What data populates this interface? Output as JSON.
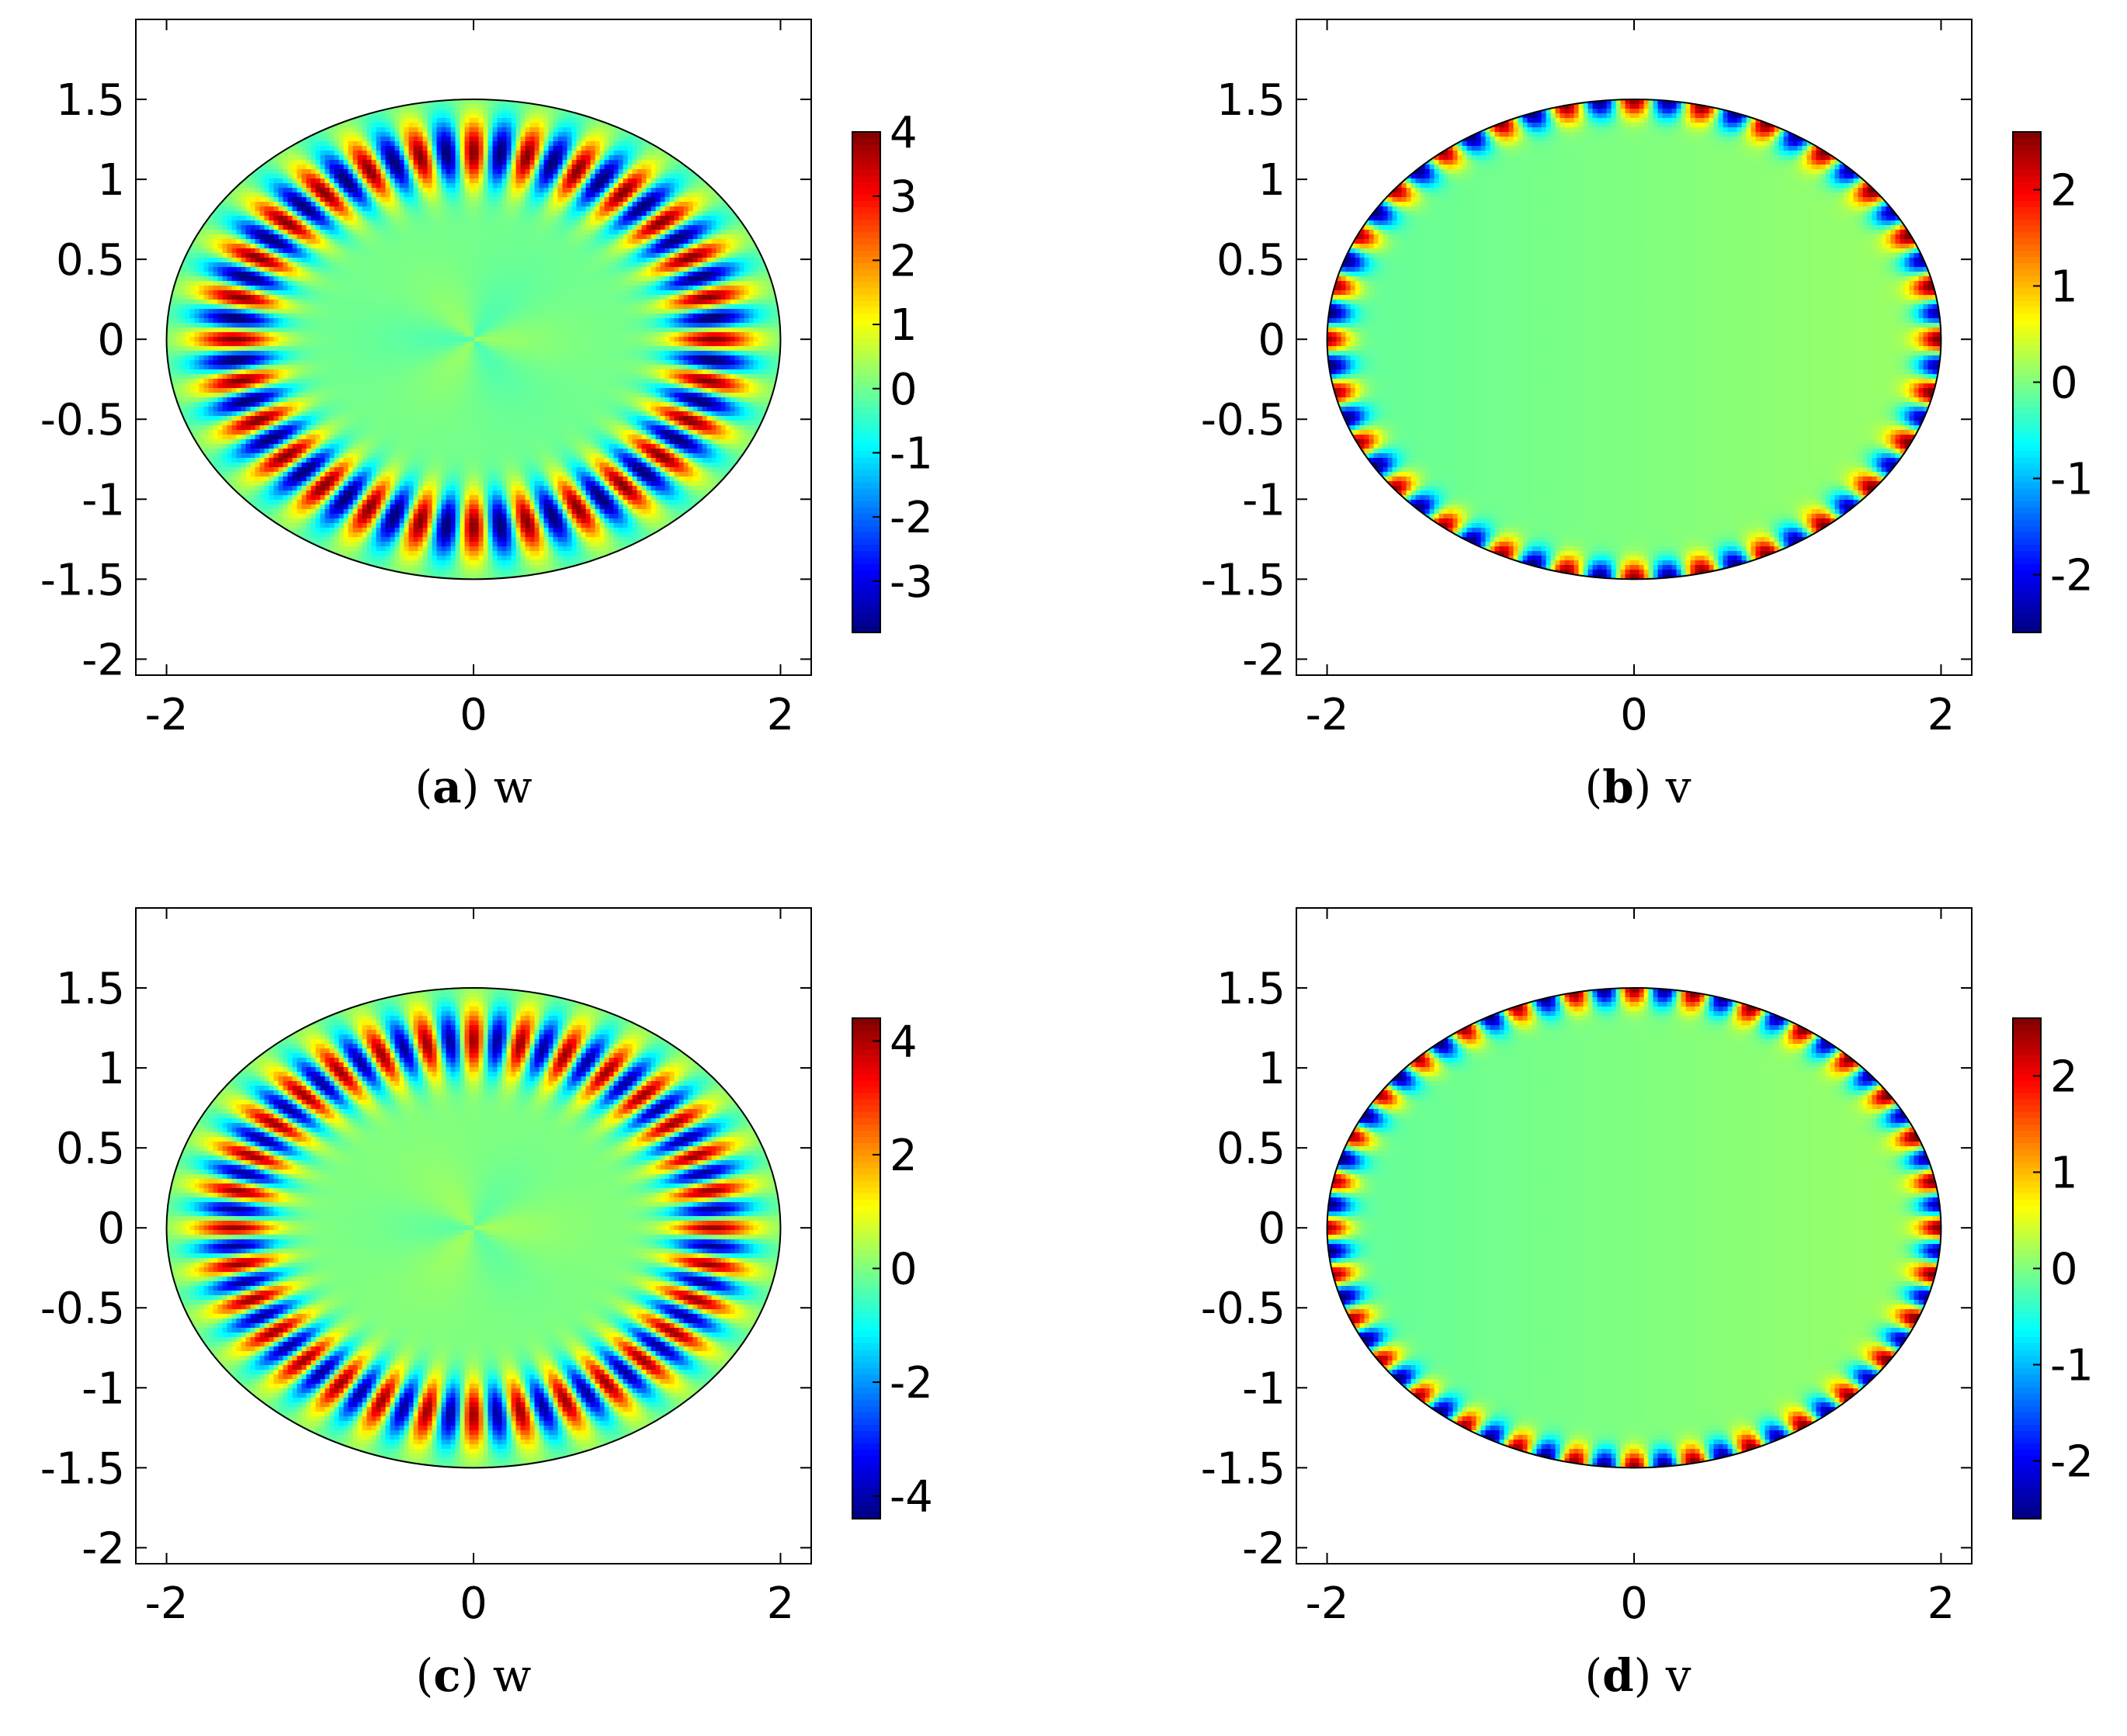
{
  "chart_data": [
    {
      "type": "heatmap",
      "panel": "a",
      "caption_letter": "a",
      "caption_var": "w",
      "title": "",
      "xlabel": "",
      "ylabel": "",
      "xlim": [
        -2.2,
        2.2
      ],
      "ylim": [
        -2.1,
        2.0
      ],
      "xticks": [
        -2,
        0,
        2
      ],
      "xtick_labels": [
        "-2",
        "0",
        "2"
      ],
      "yticks": [
        1.5,
        1,
        0.5,
        0,
        -0.5,
        -1,
        -1.5,
        -2
      ],
      "ytick_labels": [
        "1.5",
        "1",
        "0.5",
        "0",
        "-0.5",
        "-1",
        "-1.5",
        "-2"
      ],
      "domain": {
        "shape": "ellipse",
        "semi_axis_x": 2,
        "semi_axis_y": 1.5
      },
      "field": {
        "pattern": "interior",
        "lobes": 28,
        "amplitude": 4
      },
      "colorbar": {
        "range": [
          -3.8,
          4.0
        ],
        "ticks": [
          4,
          3,
          2,
          1,
          0,
          -1,
          -2,
          -3
        ],
        "tick_labels": [
          "4",
          "3",
          "2",
          "1",
          "0",
          "-1",
          "-2",
          "-3"
        ]
      },
      "grid": false
    },
    {
      "type": "heatmap",
      "panel": "b",
      "caption_letter": "b",
      "caption_var": "v",
      "title": "",
      "xlabel": "",
      "ylabel": "",
      "xlim": [
        -2.2,
        2.2
      ],
      "ylim": [
        -2.1,
        2.0
      ],
      "xticks": [
        -2,
        0,
        2
      ],
      "xtick_labels": [
        "-2",
        "0",
        "2"
      ],
      "yticks": [
        1.5,
        1,
        0.5,
        0,
        -0.5,
        -1,
        -1.5,
        -2
      ],
      "ytick_labels": [
        "1.5",
        "1",
        "0.5",
        "0",
        "-0.5",
        "-1",
        "-1.5",
        "-2"
      ],
      "domain": {
        "shape": "ellipse",
        "semi_axis_x": 2,
        "semi_axis_y": 1.5
      },
      "field": {
        "pattern": "boundary",
        "lobes": 28,
        "amplitude": 2.6
      },
      "colorbar": {
        "range": [
          -2.6,
          2.6
        ],
        "ticks": [
          2,
          1,
          0,
          -1,
          -2
        ],
        "tick_labels": [
          "2",
          "1",
          "0",
          "-1",
          "-2"
        ]
      },
      "grid": false
    },
    {
      "type": "heatmap",
      "panel": "c",
      "caption_letter": "c",
      "caption_var": "w",
      "title": "",
      "xlabel": "",
      "ylabel": "",
      "xlim": [
        -2.2,
        2.2
      ],
      "ylim": [
        -2.1,
        2.0
      ],
      "xticks": [
        -2,
        0,
        2
      ],
      "xtick_labels": [
        "-2",
        "0",
        "2"
      ],
      "yticks": [
        1.5,
        1,
        0.5,
        0,
        -0.5,
        -1,
        -1.5,
        -2
      ],
      "ytick_labels": [
        "1.5",
        "1",
        "0.5",
        "0",
        "-0.5",
        "-1",
        "-1.5",
        "-2"
      ],
      "domain": {
        "shape": "ellipse",
        "semi_axis_x": 2,
        "semi_axis_y": 1.5
      },
      "field": {
        "pattern": "interior",
        "lobes": 32,
        "amplitude": 4.2
      },
      "colorbar": {
        "range": [
          -4.4,
          4.4
        ],
        "ticks": [
          4,
          2,
          0,
          -2,
          -4
        ],
        "tick_labels": [
          "4",
          "2",
          "0",
          "-2",
          "-4"
        ]
      },
      "grid": false
    },
    {
      "type": "heatmap",
      "panel": "d",
      "caption_letter": "d",
      "caption_var": "v",
      "title": "",
      "xlabel": "",
      "ylabel": "",
      "xlim": [
        -2.2,
        2.2
      ],
      "ylim": [
        -2.1,
        2.0
      ],
      "xticks": [
        -2,
        0,
        2
      ],
      "xtick_labels": [
        "-2",
        "0",
        "2"
      ],
      "yticks": [
        1.5,
        1,
        0.5,
        0,
        -0.5,
        -1,
        -1.5,
        -2
      ],
      "ytick_labels": [
        "1.5",
        "1",
        "0.5",
        "0",
        "-0.5",
        "-1",
        "-1.5",
        "-2"
      ],
      "domain": {
        "shape": "ellipse",
        "semi_axis_x": 2,
        "semi_axis_y": 1.5
      },
      "field": {
        "pattern": "boundary",
        "lobes": 32,
        "amplitude": 2.6
      },
      "colorbar": {
        "range": [
          -2.6,
          2.6
        ],
        "ticks": [
          2,
          1,
          0,
          -1,
          -2
        ],
        "tick_labels": [
          "2",
          "1",
          "0",
          "-1",
          "-2"
        ]
      },
      "grid": false
    }
  ]
}
